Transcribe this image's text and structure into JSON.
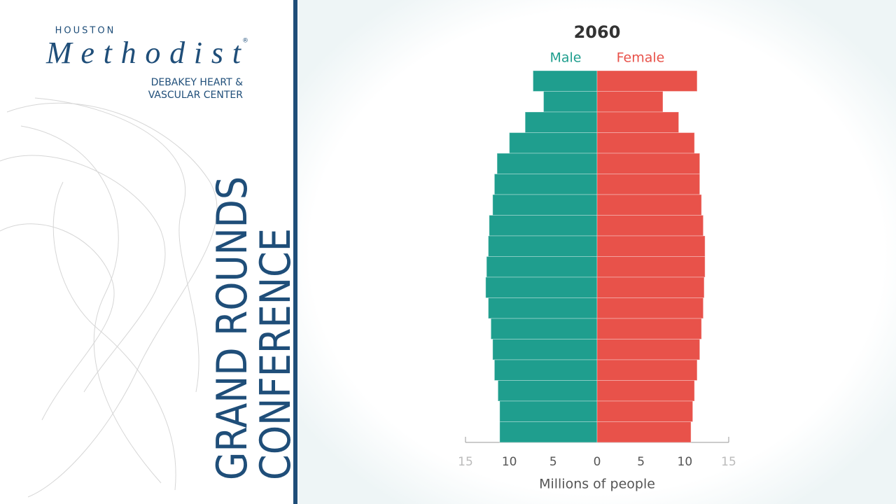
{
  "branding": {
    "city": "HOUSTON",
    "name": "Methodist",
    "mark": "®",
    "center_line1": "DEBAKEY HEART &",
    "center_line2": "VASCULAR CENTER",
    "banner_line1": "GRAND ROUNDS",
    "banner_line2": "CONFERENCE"
  },
  "chart_data": {
    "type": "pyramid",
    "title": "2060",
    "x_label": "Millions of people",
    "categories": [
      null,
      null,
      null,
      null,
      null,
      null,
      null,
      null,
      null,
      null,
      null,
      null,
      null,
      null,
      null,
      null,
      null,
      null
    ],
    "series": [
      {
        "name": "Male",
        "color": "#1f9e8e",
        "side": "left",
        "values": [
          7.3,
          6.1,
          8.2,
          10.0,
          11.4,
          11.7,
          11.9,
          12.3,
          12.4,
          12.6,
          12.7,
          12.4,
          12.1,
          11.9,
          11.7,
          11.3,
          11.1,
          11.1
        ]
      },
      {
        "name": "Female",
        "color": "#e8524a",
        "side": "right",
        "values": [
          11.4,
          7.5,
          9.3,
          11.1,
          11.7,
          11.7,
          11.9,
          12.1,
          12.3,
          12.3,
          12.2,
          12.1,
          11.9,
          11.7,
          11.4,
          11.1,
          10.9,
          10.7
        ]
      }
    ],
    "xlim": [
      -15,
      15
    ],
    "xticks": [
      {
        "value": -15,
        "label": "15"
      },
      {
        "value": -10,
        "label": "10"
      },
      {
        "value": -5,
        "label": "5"
      },
      0,
      5,
      10,
      15
    ]
  }
}
